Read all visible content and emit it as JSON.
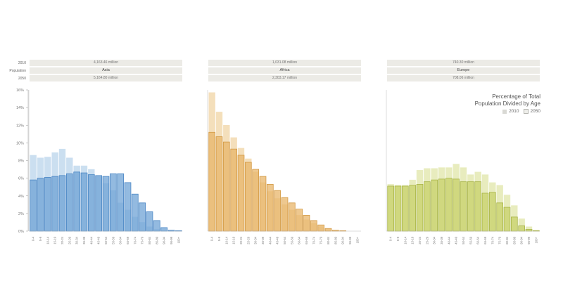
{
  "row_labels": {
    "year_2010": "2010",
    "region": "Population",
    "year_2050": "2050"
  },
  "legend": {
    "title_line1": "Percentage of Total",
    "title_line2": "Population Divided by Age",
    "item_2010": "2010",
    "item_2050": "2050"
  },
  "colors": {
    "asia": "#6fa3d6",
    "asia_stroke": "#4a86c4",
    "asia_light": "#c6dcef",
    "africa": "#e8b56a",
    "africa_stroke": "#d39a45",
    "africa_light": "#f3dcb4",
    "europe": "#c8d26a",
    "europe_stroke": "#a9b548",
    "europe_light": "#e6ebb8"
  },
  "chart_data": {
    "type": "bar",
    "ylabel": "",
    "ylim": [
      0,
      16
    ],
    "yticks": [
      "0%",
      "2%",
      "4%",
      "6%",
      "8%",
      "10%",
      "12%",
      "14%",
      "16%"
    ],
    "categories": [
      "0-4",
      "5-9",
      "10-14",
      "15-19",
      "20-24",
      "25-29",
      "30-34",
      "35-39",
      "40-44",
      "45-49",
      "50-54",
      "55-59",
      "60-64",
      "65-69",
      "70-74",
      "75-79",
      "80-84",
      "85-89",
      "90-94",
      "95-99",
      "100+"
    ],
    "panels": [
      {
        "region": "Asia",
        "pop_2010": "4,163.46 million",
        "pop_2050": "5,164.80 million",
        "series": [
          {
            "name": "2050",
            "values": [
              5.8,
              6.0,
              6.1,
              6.2,
              6.3,
              6.5,
              6.7,
              6.6,
              6.4,
              6.3,
              6.2,
              6.5,
              6.5,
              5.5,
              4.2,
              3.2,
              2.2,
              1.2,
              0.4,
              0.1,
              0.05
            ]
          },
          {
            "name": "2010",
            "values": [
              8.6,
              8.3,
              8.4,
              8.9,
              9.3,
              8.3,
              7.4,
              7.4,
              7.0,
              6.2,
              5.4,
              4.6,
              3.2,
              2.4,
              1.6,
              1.0,
              0.5,
              0.2,
              0.05,
              0.0,
              0.0
            ]
          }
        ]
      },
      {
        "region": "Africa",
        "pop_2010": "1,031.08 million",
        "pop_2050": "2,303.17 million",
        "series": [
          {
            "name": "2050",
            "values": [
              11.2,
              10.7,
              10.1,
              9.3,
              8.6,
              7.8,
              7.0,
              6.2,
              5.3,
              4.6,
              3.8,
              3.2,
              2.5,
              1.8,
              1.2,
              0.7,
              0.3,
              0.1,
              0.05,
              0.0,
              0.0
            ]
          },
          {
            "name": "2010",
            "values": [
              15.7,
              13.5,
              12.0,
              10.6,
              9.4,
              8.2,
              6.7,
              5.5,
              4.5,
              3.7,
              3.0,
              2.4,
              1.8,
              1.3,
              0.9,
              0.5,
              0.2,
              0.1,
              0.0,
              0.0,
              0.0
            ]
          }
        ]
      },
      {
        "region": "Europe",
        "pop_2010": "740.30 million",
        "pop_2050": "708.06 million",
        "series": [
          {
            "name": "2050",
            "values": [
              5.1,
              5.1,
              5.1,
              5.2,
              5.3,
              5.6,
              5.8,
              5.9,
              6.0,
              5.9,
              5.6,
              5.6,
              5.6,
              4.3,
              4.4,
              3.2,
              2.7,
              1.6,
              0.6,
              0.2,
              0.05
            ]
          },
          {
            "name": "2010",
            "values": [
              5.3,
              5.2,
              5.2,
              5.8,
              6.9,
              7.1,
              7.1,
              7.2,
              7.2,
              7.6,
              7.2,
              6.4,
              6.7,
              6.4,
              5.5,
              5.2,
              4.1,
              2.9,
              1.4,
              0.5,
              0.1
            ]
          }
        ]
      }
    ]
  }
}
